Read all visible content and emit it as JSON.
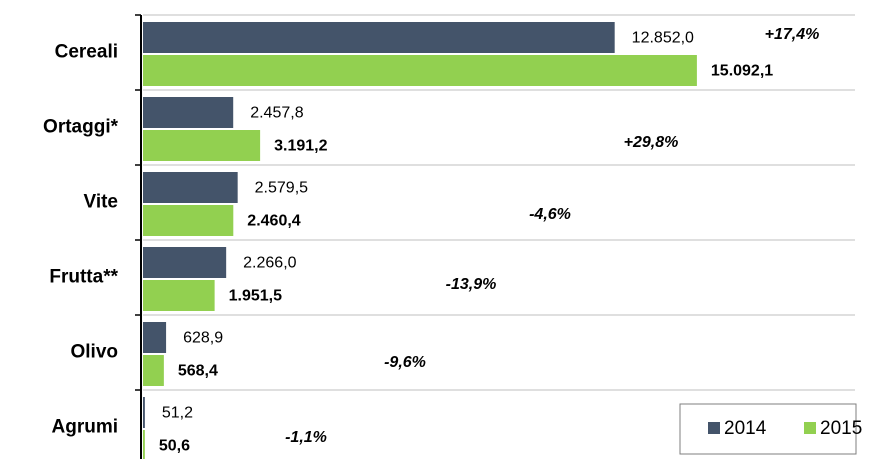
{
  "chart_data": {
    "type": "hbar",
    "categories": [
      "Cereali",
      "Ortaggi*",
      "Vite",
      "Frutta**",
      "Olivo",
      "Agrumi"
    ],
    "series": [
      {
        "name": "2014",
        "color": "#44546a",
        "values": [
          12852.0,
          2457.8,
          2579.5,
          2266.0,
          628.9,
          51.2
        ],
        "value_labels": [
          "12.852,0",
          "2.457,8",
          "2.579,5",
          "2.266,0",
          "628,9",
          "51,2"
        ]
      },
      {
        "name": "2015",
        "color": "#92d050",
        "values": [
          15092.1,
          3191.2,
          2460.4,
          1951.5,
          568.4,
          50.6
        ],
        "value_labels": [
          "15.092,1",
          "3.191,2",
          "2.460,4",
          "1.951,5",
          "568,4",
          "50,6"
        ]
      }
    ],
    "annotations": [
      "+17,4%",
      "+29,8%",
      "-4,6%",
      "-13,9%",
      "-9,6%",
      "-1,1%"
    ],
    "xlim": [
      0,
      19400
    ],
    "grid": true,
    "legend": "bottom-right"
  }
}
